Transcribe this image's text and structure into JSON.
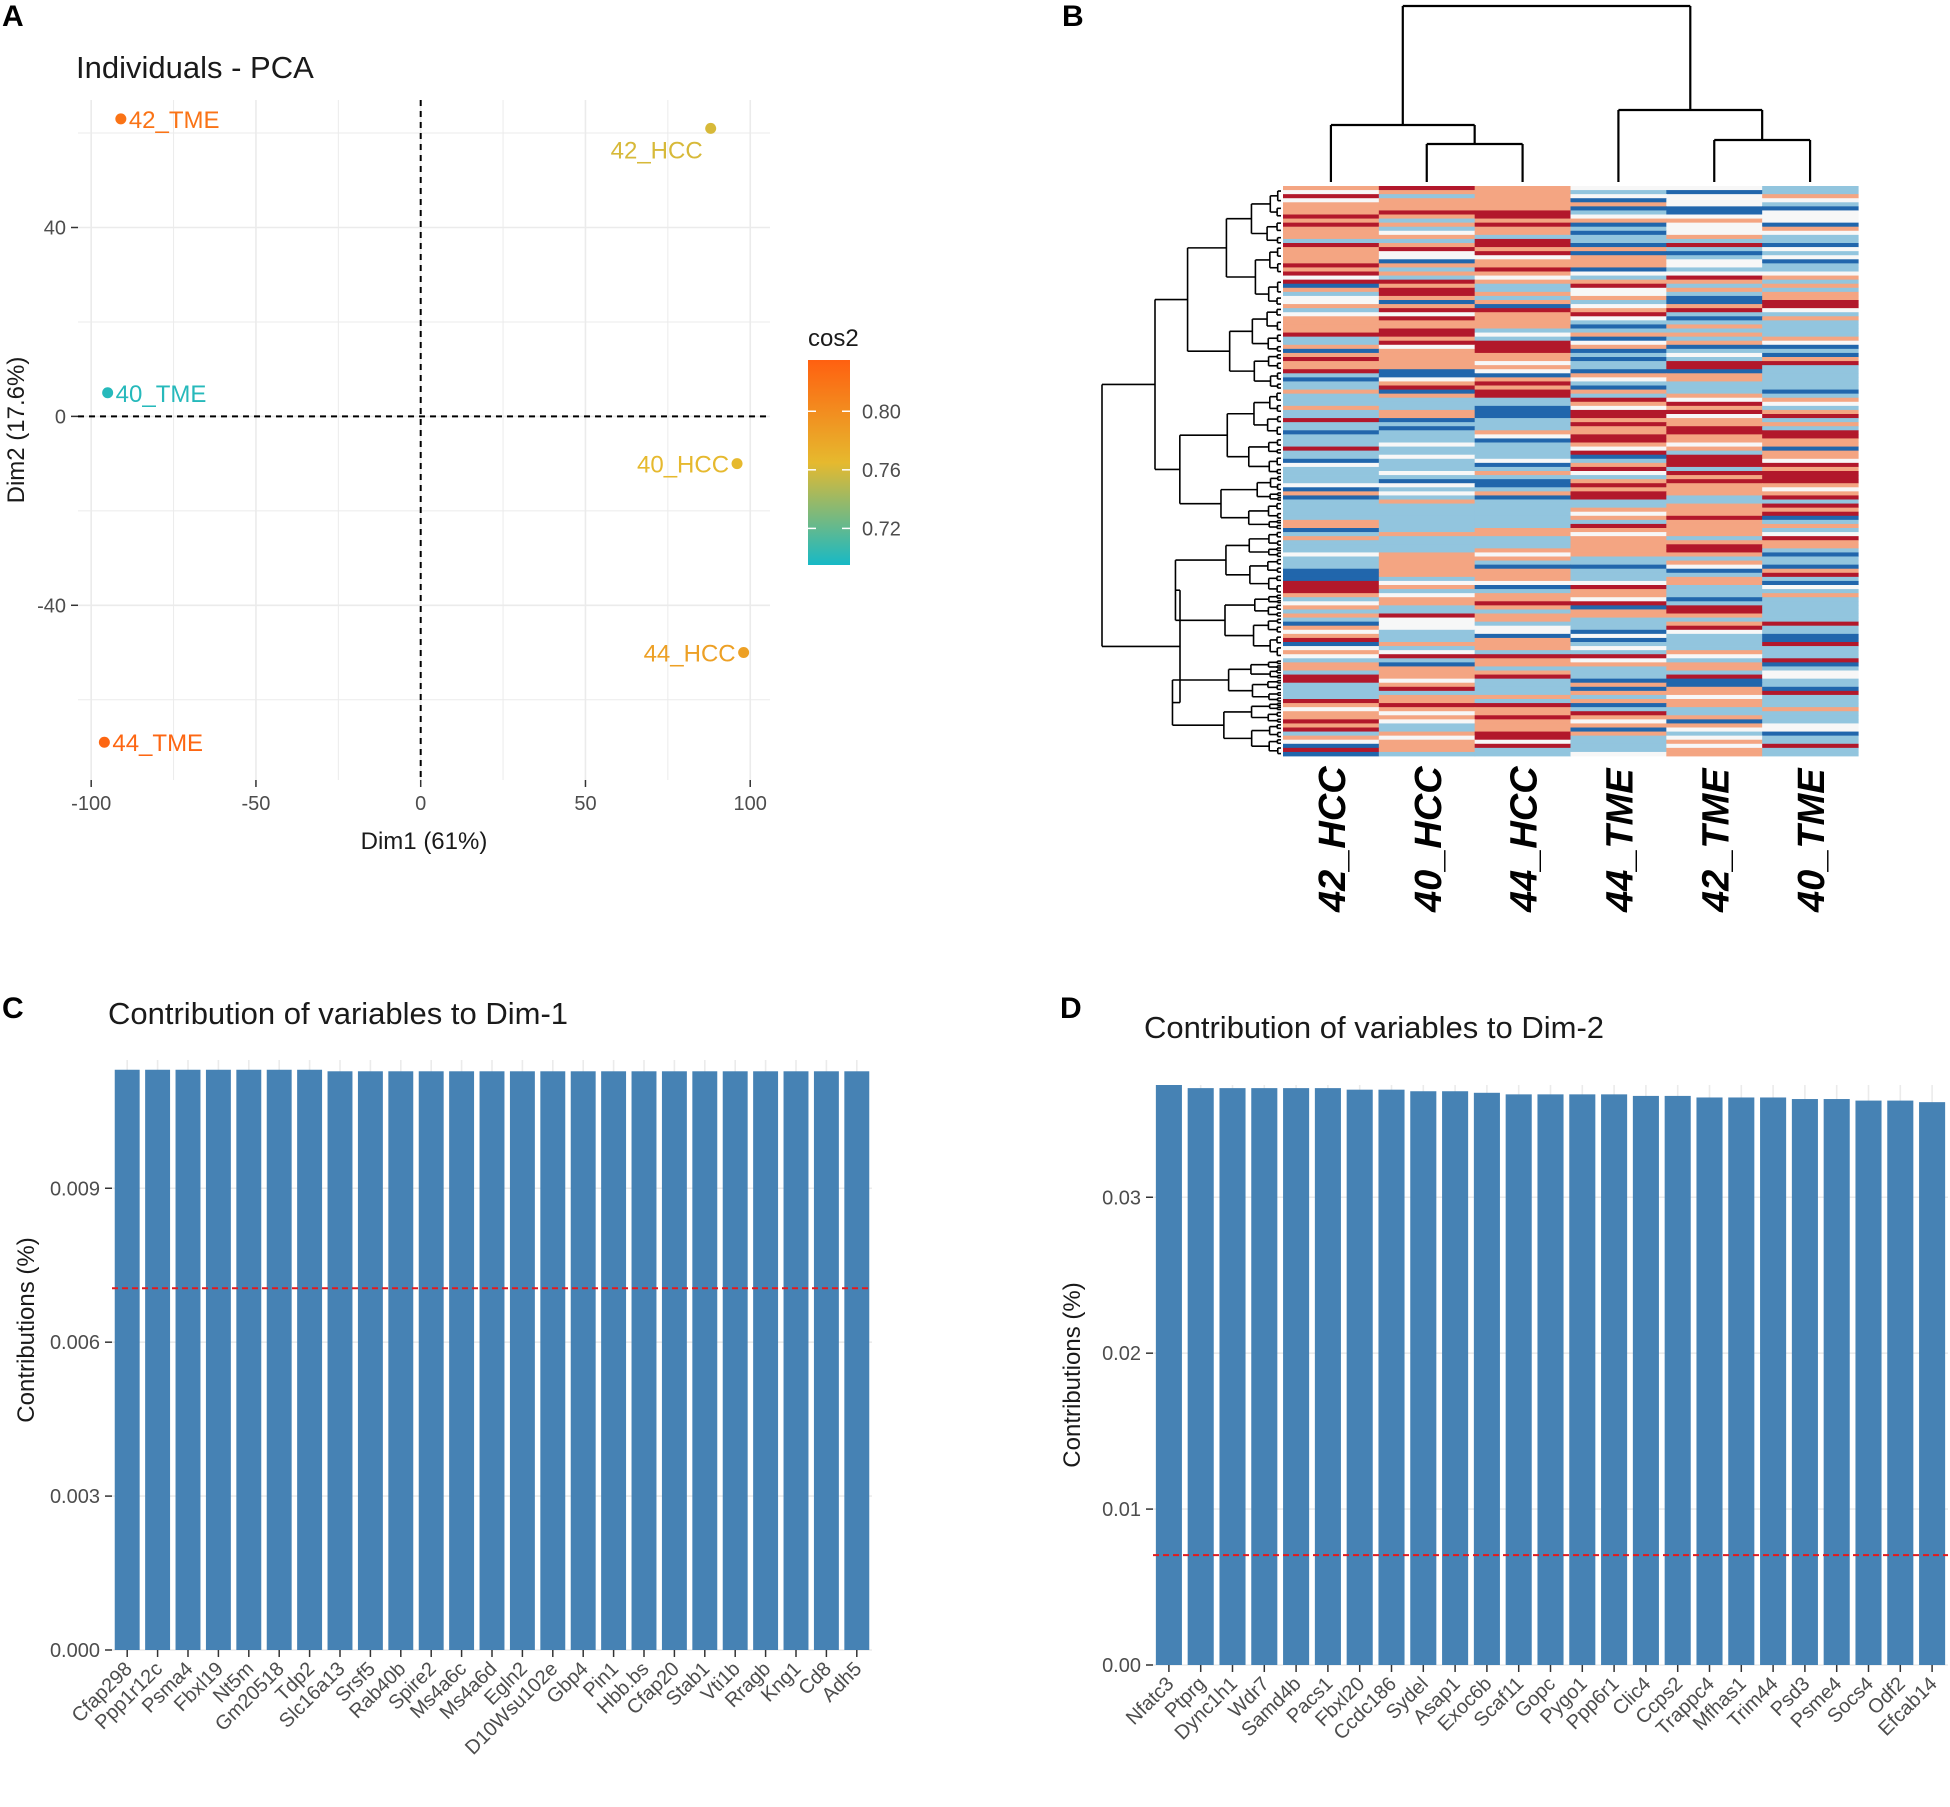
{
  "panels": {
    "a": {
      "letter": "A",
      "title": "Individuals - PCA",
      "xlabel": "Dim1 (61%)",
      "ylabel": "Dim2 (17.6%)",
      "xlim": [
        -104,
        106
      ],
      "ylim": [
        -77,
        67
      ],
      "xticks": [
        -100,
        -50,
        0,
        50,
        100
      ],
      "yticks": [
        -40,
        0,
        40
      ],
      "legend": {
        "title": "cos2",
        "ticks": [
          0.72,
          0.76,
          0.8
        ],
        "range": [
          0.695,
          0.835
        ],
        "colors": [
          "#17b9c6",
          "#e6b92e",
          "#ff6010"
        ]
      }
    },
    "b": {
      "letter": "B",
      "samples": [
        "42_HCC",
        "40_HCC",
        "44_HCC",
        "44_TME",
        "42_TME",
        "40_TME"
      ]
    },
    "c": {
      "letter": "C",
      "title": "Contribution of variables to Dim-1",
      "ylabel": "Contributions (%)",
      "ylim": [
        0,
        0.0115
      ],
      "yticks": [
        "0.000",
        "0.003",
        "0.006",
        "0.009"
      ],
      "reference_line": 0.00705,
      "bar_color": "#4682b4",
      "line_color": "#e31a1c"
    },
    "d": {
      "letter": "D",
      "title": "Contribution of variables to Dim-2",
      "ylabel": "Contributions (%)",
      "ylim": [
        0,
        0.0372
      ],
      "yticks": [
        "0.00",
        "0.01",
        "0.02",
        "0.03"
      ],
      "reference_line": 0.00705,
      "bar_color": "#4682b4",
      "line_color": "#e31a1c"
    }
  },
  "chart_data": [
    {
      "type": "scatter",
      "title": "Individuals - PCA",
      "xlabel": "Dim1 (61%)",
      "ylabel": "Dim2 (17.6%)",
      "xlim": [
        -104,
        106
      ],
      "ylim": [
        -77,
        67
      ],
      "points": [
        {
          "label": "42_TME",
          "x": -91,
          "y": 63,
          "cos2": 0.82
        },
        {
          "label": "42_HCC",
          "x": 88,
          "y": 61,
          "cos2": 0.76
        },
        {
          "label": "40_TME",
          "x": -95,
          "y": 5,
          "cos2": 0.7
        },
        {
          "label": "40_HCC",
          "x": 96,
          "y": -10,
          "cos2": 0.765
        },
        {
          "label": "44_HCC",
          "x": 98,
          "y": -50,
          "cos2": 0.785
        },
        {
          "label": "44_TME",
          "x": -96,
          "y": -69,
          "cos2": 0.83
        }
      ]
    },
    {
      "type": "heatmap",
      "columns": [
        "42_HCC",
        "40_HCC",
        "44_HCC",
        "44_TME",
        "42_TME",
        "40_TME"
      ],
      "column_dendrogram": "((42_HCC,(40_HCC,44_HCC)),(44_TME,(42_TME,40_TME)))",
      "color_scale": [
        "#2166ac",
        "#92c5de",
        "#f7f7f7",
        "#f4a582",
        "#b2182b"
      ]
    },
    {
      "type": "bar",
      "title": "Contribution of variables to Dim-1",
      "ylabel": "Contributions (%)",
      "ylim": [
        0,
        0.0115
      ],
      "reference_line": 0.00705,
      "categories": [
        "Cfap298",
        "Ppp1r12c",
        "Psma4",
        "Fbxl19",
        "Nt5m",
        "Gm20518",
        "Tdp2",
        "Slc16a13",
        "Srsf5",
        "Rab40b",
        "Spire2",
        "Ms4a6c",
        "Ms4a6d",
        "Egln2",
        "D10Wsu102e",
        "Gbp4",
        "Pin1",
        "Hbb.bs",
        "Cfap20",
        "Stab1",
        "Vti1b",
        "Rragb",
        "Kng1",
        "Cd8",
        "Adh5"
      ],
      "values": [
        0.01131,
        0.01131,
        0.01131,
        0.01131,
        0.01131,
        0.01131,
        0.01131,
        0.01128,
        0.01128,
        0.01128,
        0.01128,
        0.01128,
        0.01128,
        0.01128,
        0.01128,
        0.01128,
        0.01128,
        0.01128,
        0.01128,
        0.01128,
        0.01128,
        0.01128,
        0.01128,
        0.01128,
        0.01128
      ]
    },
    {
      "type": "bar",
      "title": "Contribution of variables to Dim-2",
      "ylabel": "Contributions (%)",
      "ylim": [
        0,
        0.0372
      ],
      "reference_line": 0.00705,
      "categories": [
        "Nfatc3",
        "Ptprg",
        "Dync1h1",
        "Wdr7",
        "Samd4b",
        "Pacs1",
        "Fbxl20",
        "Ccdc186",
        "Sydel",
        "Asap1",
        "Exoc6b",
        "Scaf11",
        "Gopc",
        "Pygo1",
        "Ppp6r1",
        "Clic4",
        "Ccps2",
        "Trappc4",
        "Mfhas1",
        "Trim44",
        "Psd3",
        "Psme4",
        "Socs4",
        "Odf2",
        "Efcab14"
      ],
      "values": [
        0.0372,
        0.037,
        0.037,
        0.037,
        0.037,
        0.037,
        0.0369,
        0.0369,
        0.0368,
        0.0368,
        0.0367,
        0.0366,
        0.0366,
        0.0366,
        0.0366,
        0.0365,
        0.0365,
        0.0364,
        0.0364,
        0.0364,
        0.0363,
        0.0363,
        0.0362,
        0.0362,
        0.0361
      ]
    }
  ]
}
